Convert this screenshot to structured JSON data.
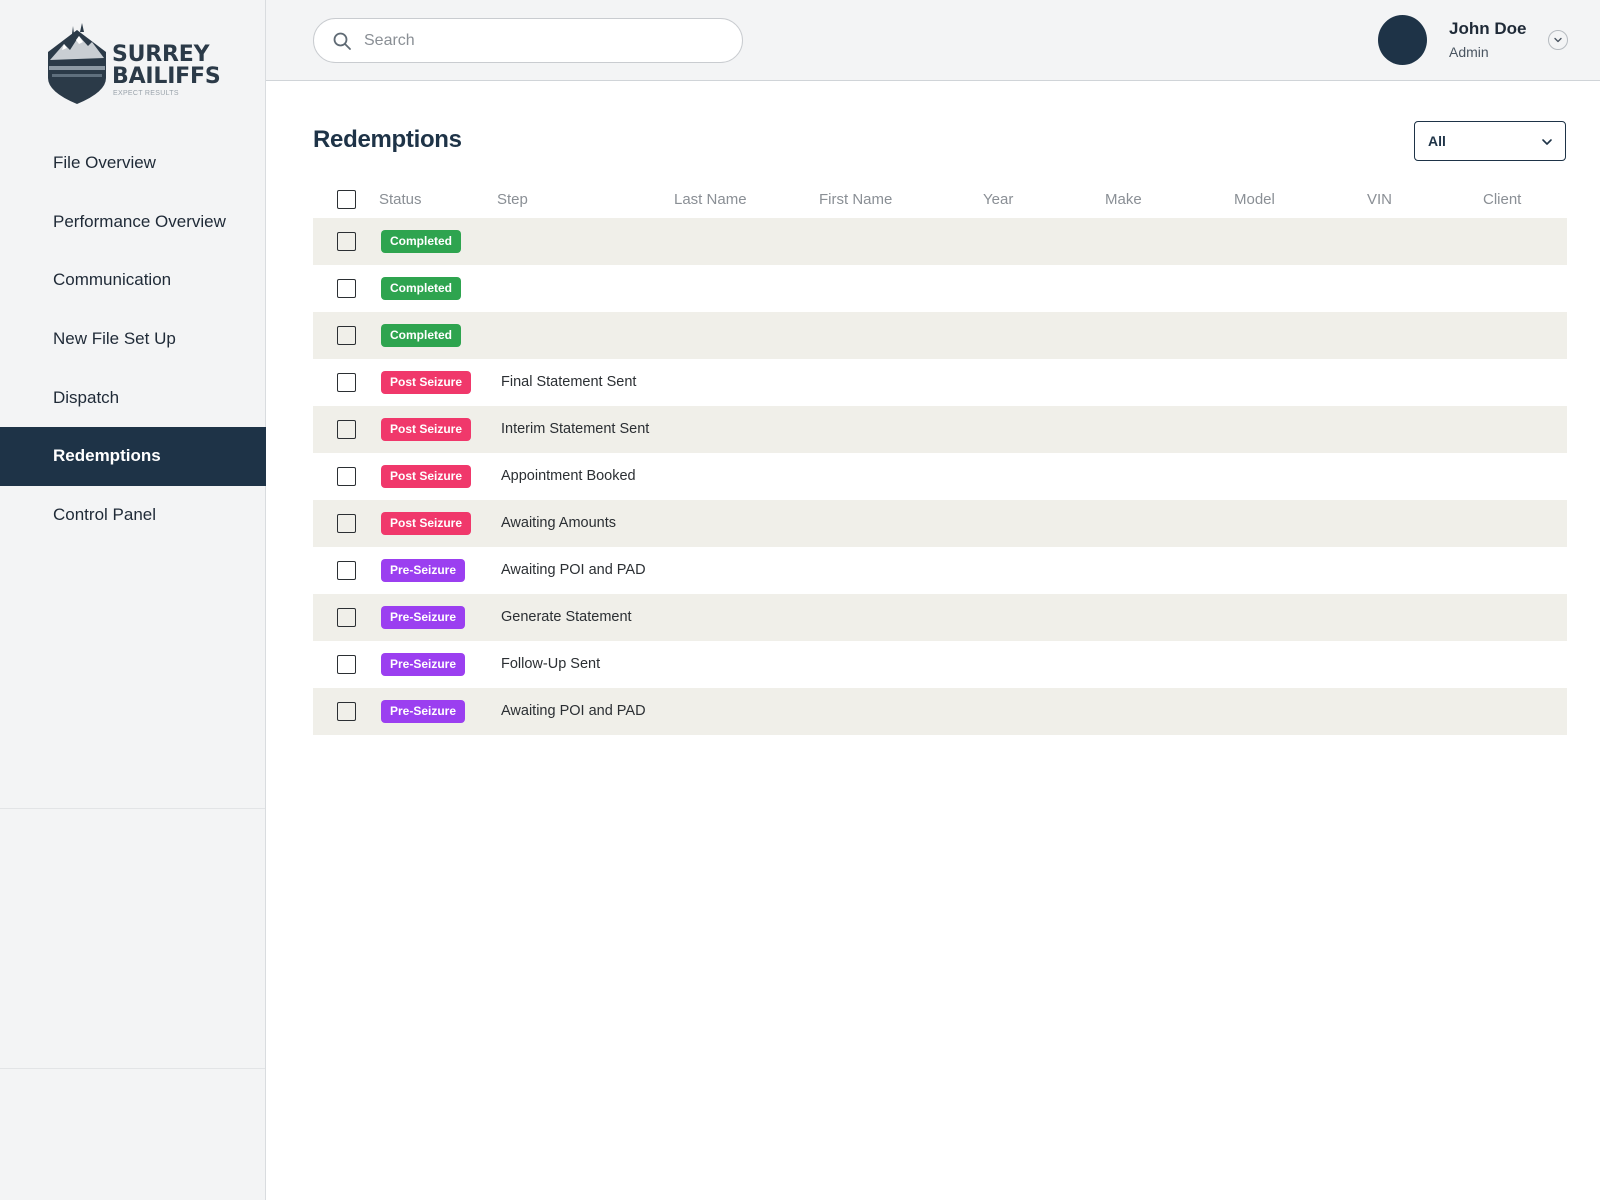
{
  "brand": {
    "name_line1": "SURREY",
    "name_line2": "BAILIFFS",
    "tagline": "EXPECT RESULTS"
  },
  "sidebar": {
    "items": [
      {
        "label": "File Overview",
        "active": false
      },
      {
        "label": "Performance Overview",
        "active": false
      },
      {
        "label": "Communication",
        "active": false
      },
      {
        "label": "New File Set Up",
        "active": false
      },
      {
        "label": "Dispatch",
        "active": false
      },
      {
        "label": "Redemptions",
        "active": true
      },
      {
        "label": "Control Panel",
        "active": false
      }
    ]
  },
  "header": {
    "search_placeholder": "Search",
    "user_name": "John Doe",
    "user_role": "Admin"
  },
  "main": {
    "title": "Redemptions",
    "filter_value": "All"
  },
  "table": {
    "columns": [
      "Status",
      "Step",
      "Last Name",
      "First Name",
      "Year",
      "Make",
      "Model",
      "VIN",
      "Client"
    ],
    "rows": [
      {
        "status": "Completed",
        "step": ""
      },
      {
        "status": "Completed",
        "step": ""
      },
      {
        "status": "Completed",
        "step": ""
      },
      {
        "status": "Post Seizure",
        "step": "Final Statement Sent"
      },
      {
        "status": "Post Seizure",
        "step": "Interim Statement Sent"
      },
      {
        "status": "Post Seizure",
        "step": "Appointment Booked"
      },
      {
        "status": "Post Seizure",
        "step": "Awaiting Amounts"
      },
      {
        "status": "Pre-Seizure",
        "step": "Awaiting POI and PAD"
      },
      {
        "status": "Pre-Seizure",
        "step": "Generate Statement"
      },
      {
        "status": "Pre-Seizure",
        "step": "Follow-Up Sent"
      },
      {
        "status": "Pre-Seizure",
        "step": "Awaiting POI and PAD"
      }
    ]
  },
  "colors": {
    "navy": "#1e3347",
    "completed": "#2ea44f",
    "post_seizure": "#f0386b",
    "pre_seizure": "#9b3ff0",
    "row_shade": "#f0efe9"
  }
}
